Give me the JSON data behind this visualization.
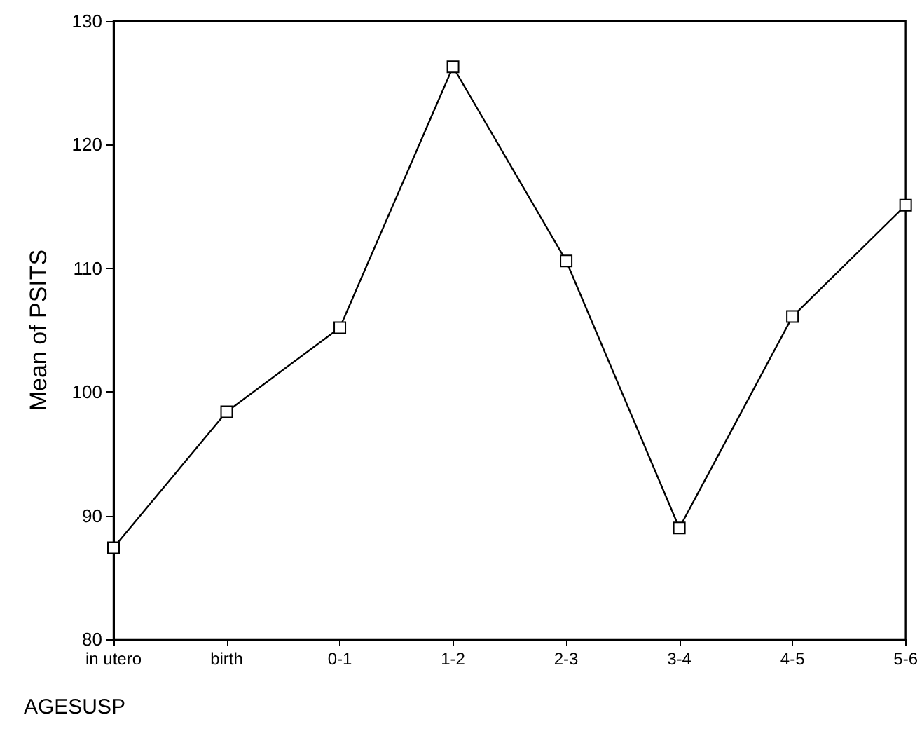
{
  "chart_data": {
    "type": "line",
    "xlabel": "AGESUSP",
    "ylabel": "Mean of PSITS",
    "categories": [
      "in utero",
      "birth",
      "0-1",
      "1-2",
      "2-3",
      "3-4",
      "4-5",
      "5-6"
    ],
    "series": [
      {
        "color": "#000000",
        "values": [
          87.4,
          98.4,
          105.2,
          126.3,
          110.6,
          89.0,
          106.1,
          115.1
        ]
      }
    ],
    "ylim": [
      80,
      130
    ],
    "yticks": [
      80,
      90,
      100,
      110,
      120,
      130
    ],
    "grid": false,
    "marker": "square",
    "line_style": "solid"
  }
}
